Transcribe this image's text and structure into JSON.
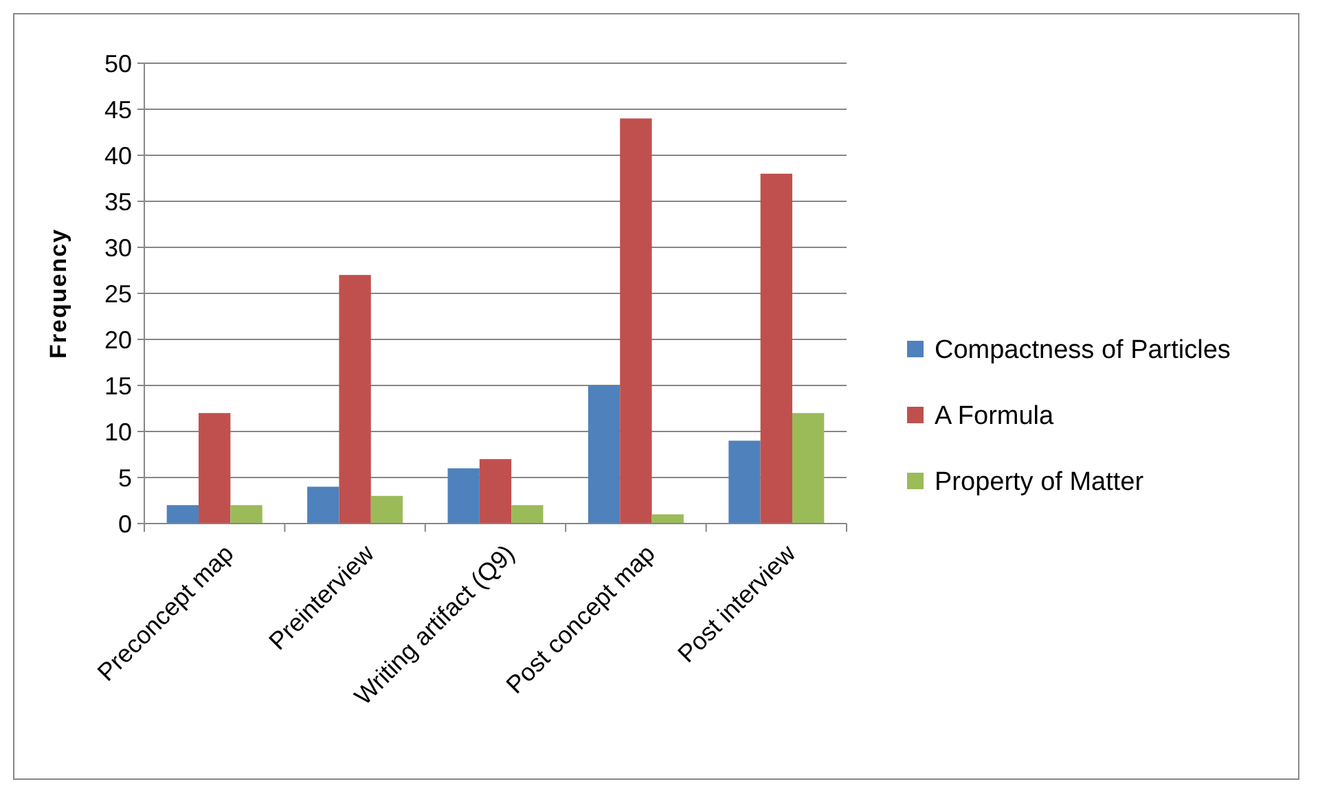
{
  "chart_data": {
    "type": "bar",
    "ylabel": "Frequency",
    "categories": [
      "Preconcept map",
      "Preinterview",
      "Writing artifact (Q9)",
      "Post concept map",
      "Post interview"
    ],
    "series": [
      {
        "name": "Compactness of Particles",
        "color": "#4f81bd",
        "values": [
          2,
          4,
          6,
          15,
          9
        ]
      },
      {
        "name": "A Formula",
        "color": "#c0504d",
        "values": [
          12,
          27,
          7,
          44,
          38
        ]
      },
      {
        "name": "Property of Matter",
        "color": "#9bbb59",
        "values": [
          2,
          3,
          2,
          1,
          12
        ]
      }
    ],
    "ylim": [
      0,
      50
    ],
    "yticks": [
      0,
      5,
      10,
      15,
      20,
      25,
      30,
      35,
      40,
      45,
      50
    ],
    "grid": "y",
    "legend": "right"
  }
}
